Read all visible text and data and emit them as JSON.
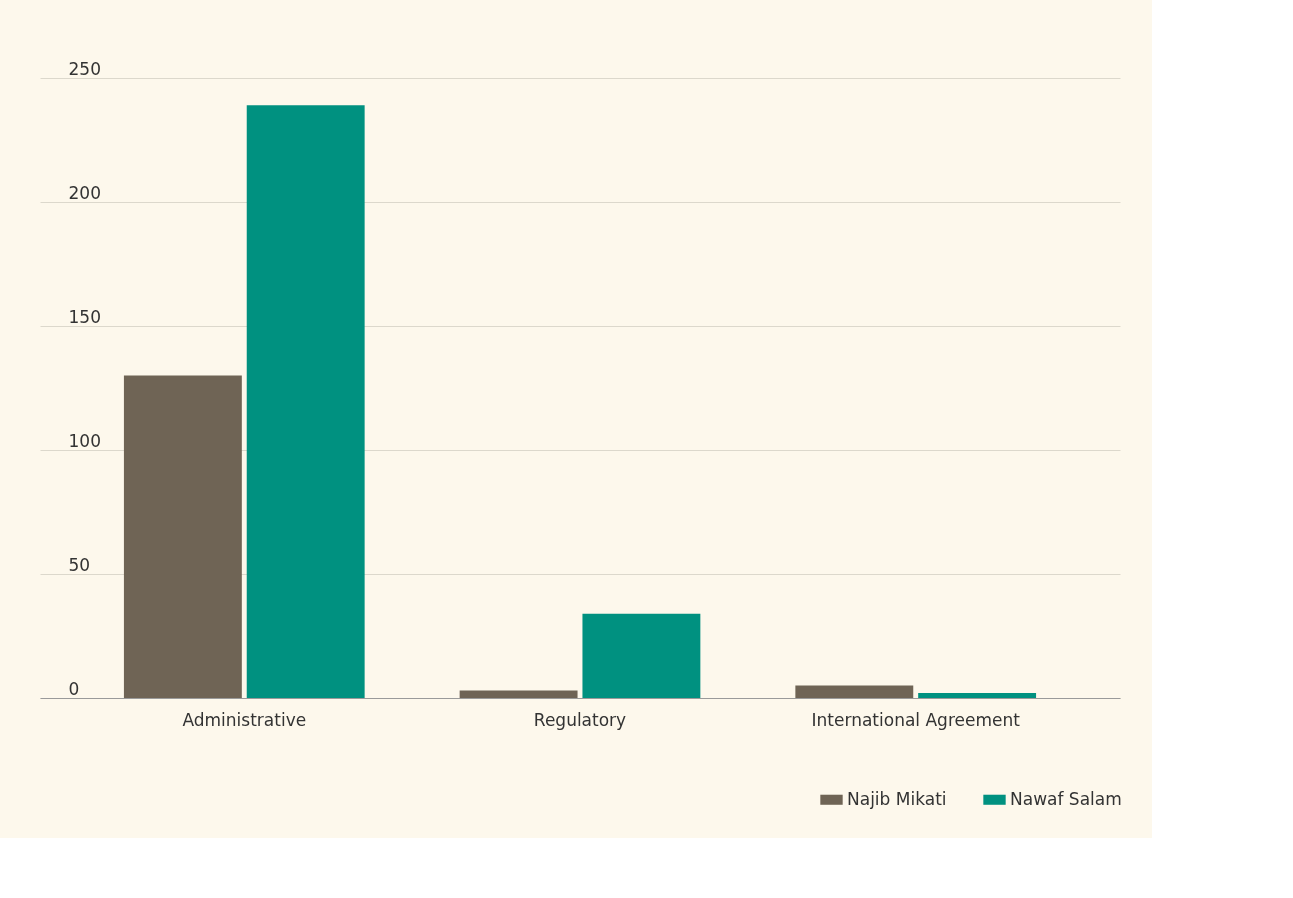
{
  "chart_data": {
    "type": "bar",
    "categories": [
      "Administrative",
      "Regulatory",
      "International Agreement"
    ],
    "series": [
      {
        "name": "Najib Mikati",
        "color": "#6f6455",
        "values": [
          130,
          3,
          5
        ]
      },
      {
        "name": "Nawaf Salam",
        "color": "#009180",
        "values": [
          239,
          34,
          2
        ]
      }
    ],
    "ylim": [
      0,
      250
    ],
    "yticks": [
      0,
      50,
      100,
      150,
      200,
      250
    ],
    "grid": "y",
    "legend": "bottom right"
  }
}
